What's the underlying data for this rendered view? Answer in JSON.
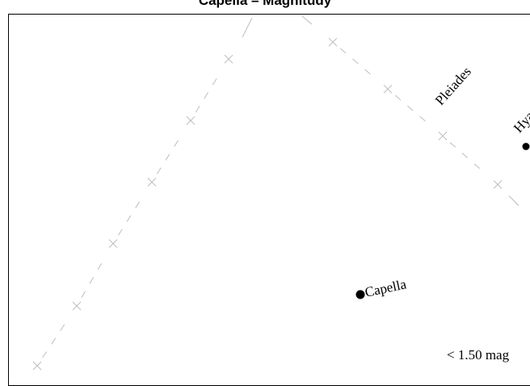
{
  "title": "Capella – Magnitudy",
  "legend_text": "< 1.50 mag",
  "colors": {
    "background": "#ffffff",
    "frame": "#000000",
    "grid": "#bdbdbd",
    "star": "#000000",
    "text": "#000000"
  },
  "labels": {
    "capella": "Capella",
    "pleiades": "Pleiades",
    "hyades": "Hyades"
  },
  "stars": [
    {
      "name": "Capella",
      "type": "star"
    },
    {
      "name": "Hyades",
      "type": "star"
    }
  ]
}
